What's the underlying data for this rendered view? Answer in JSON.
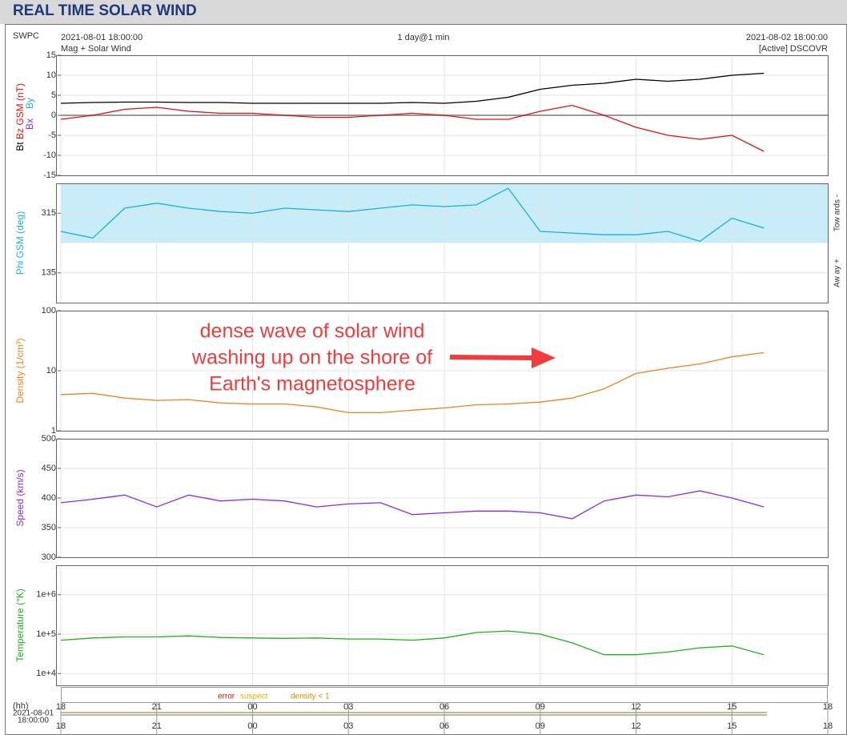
{
  "header": {
    "title": "REAL TIME SOLAR WIND"
  },
  "info": {
    "source": "SWPC",
    "start": "2021-08-01 18:00:00",
    "product": "Mag + Solar Wind",
    "span": "1 day@1 min",
    "end": "2021-08-02 18:00:00",
    "status": "[Active] DSCOVR"
  },
  "xaxis": {
    "xlim": [
      0,
      24
    ],
    "xticks": [
      {
        "value": 0,
        "label": "18"
      },
      {
        "value": 3,
        "label": "21"
      },
      {
        "value": 6,
        "label": "00"
      },
      {
        "value": 9,
        "label": "03"
      },
      {
        "value": 12,
        "label": "06"
      },
      {
        "value": 15,
        "label": "09"
      },
      {
        "value": 18,
        "label": "12"
      },
      {
        "value": 21,
        "label": "15"
      },
      {
        "value": 24,
        "label": "18"
      }
    ],
    "unit": "(hh)",
    "start_date": "2021-08-01",
    "start_time": "18:00:00"
  },
  "annotation": {
    "lines": [
      "dense wave of solar wind",
      "washing up on the shore of",
      "Earth's magnetosphere"
    ],
    "color": "#f03c3c"
  },
  "flags": {
    "error": "error",
    "suspect": "suspect",
    "density": "density < 1"
  },
  "chart_data": [
    {
      "type": "line",
      "x": [
        0,
        1,
        2,
        3,
        4,
        5,
        6,
        7,
        8,
        9,
        10,
        11,
        12,
        13,
        14,
        15,
        16,
        17,
        18,
        19,
        20,
        21,
        22
      ],
      "ylim": [
        -15,
        15
      ],
      "yticks": [
        -15,
        -10,
        -5,
        0,
        5,
        10,
        15
      ],
      "grid": true,
      "series": [
        {
          "name": "Bt",
          "color": "#000000",
          "values": [
            3,
            3.2,
            3.3,
            3.3,
            3.2,
            3.2,
            3,
            3,
            3,
            3,
            3,
            3.2,
            3,
            3.5,
            4.5,
            6.5,
            7.5,
            8,
            9,
            8.5,
            9,
            10,
            10.5
          ]
        },
        {
          "name": "Bz GSM (nT)",
          "color": "#e01010",
          "values": [
            -1,
            0,
            1.5,
            2,
            1,
            0.5,
            0.5,
            0,
            -0.5,
            -0.5,
            0,
            0.5,
            0,
            -1,
            -1,
            1,
            2.5,
            0,
            -3,
            -5,
            -6,
            -5,
            -9
          ]
        }
      ],
      "extra_labels": [
        {
          "text": "Bx",
          "color": "#8a2be2"
        },
        {
          "text": "By",
          "color": "#1ab0e0"
        }
      ]
    },
    {
      "type": "line",
      "x": [
        0,
        1,
        2,
        3,
        4,
        5,
        6,
        7,
        8,
        9,
        10,
        11,
        12,
        13,
        14,
        15,
        16,
        17,
        18,
        19,
        20,
        21,
        22
      ],
      "ylim": [
        45,
        405
      ],
      "yticks": [
        135,
        315
      ],
      "grid": true,
      "ylabel": "Phi GSM (deg)",
      "color": "#1ab0e0",
      "values": [
        260,
        240,
        330,
        345,
        330,
        320,
        315,
        330,
        325,
        320,
        330,
        340,
        335,
        340,
        390,
        260,
        255,
        250,
        250,
        260,
        230,
        300,
        270
      ],
      "shade": {
        "color": "#c8ecf8",
        "range": [
          225,
          405
        ]
      },
      "right_labels": [
        "Tow ards -",
        "Aw ay +"
      ]
    },
    {
      "type": "line",
      "log": true,
      "x": [
        0,
        1,
        2,
        3,
        4,
        5,
        6,
        7,
        8,
        9,
        10,
        11,
        12,
        13,
        14,
        15,
        16,
        17,
        18,
        19,
        20,
        21,
        22
      ],
      "ylim": [
        1,
        100
      ],
      "yticks": [
        1,
        10,
        100
      ],
      "grid": true,
      "ylabel": "Density (1/cm³)",
      "color": "#f08020",
      "values": [
        4,
        4.2,
        3.5,
        3.2,
        3.3,
        2.9,
        2.8,
        2.8,
        2.5,
        2,
        2,
        2.2,
        2.4,
        2.7,
        2.8,
        3,
        3.5,
        5,
        9,
        11,
        13,
        17,
        20
      ]
    },
    {
      "type": "line",
      "x": [
        0,
        1,
        2,
        3,
        4,
        5,
        6,
        7,
        8,
        9,
        10,
        11,
        12,
        13,
        14,
        15,
        16,
        17,
        18,
        19,
        20,
        21,
        22
      ],
      "ylim": [
        300,
        500
      ],
      "yticks": [
        300,
        350,
        400,
        450,
        500
      ],
      "grid": true,
      "ylabel": "Speed (km/s)",
      "color": "#8a2be2",
      "values": [
        392,
        398,
        405,
        385,
        405,
        395,
        398,
        395,
        385,
        390,
        392,
        372,
        375,
        378,
        378,
        375,
        365,
        395,
        405,
        402,
        412,
        400,
        385
      ]
    },
    {
      "type": "line",
      "log": true,
      "x": [
        0,
        1,
        2,
        3,
        4,
        5,
        6,
        7,
        8,
        9,
        10,
        11,
        12,
        13,
        14,
        15,
        16,
        17,
        18,
        19,
        20,
        21,
        22
      ],
      "ylim": [
        5000,
        5600000
      ],
      "yticks": [
        {
          "value": 10000,
          "label": "1e+4"
        },
        {
          "value": 100000,
          "label": "1e+5"
        },
        {
          "value": 1000000,
          "label": "1e+6"
        }
      ],
      "grid": true,
      "ylabel": "Temperature (°K)",
      "color": "#20b020",
      "values": [
        70000,
        80000,
        85000,
        85000,
        90000,
        82000,
        80000,
        78000,
        80000,
        75000,
        75000,
        70000,
        80000,
        110000,
        120000,
        100000,
        60000,
        30000,
        30000,
        35000,
        45000,
        50000,
        30000
      ]
    }
  ]
}
